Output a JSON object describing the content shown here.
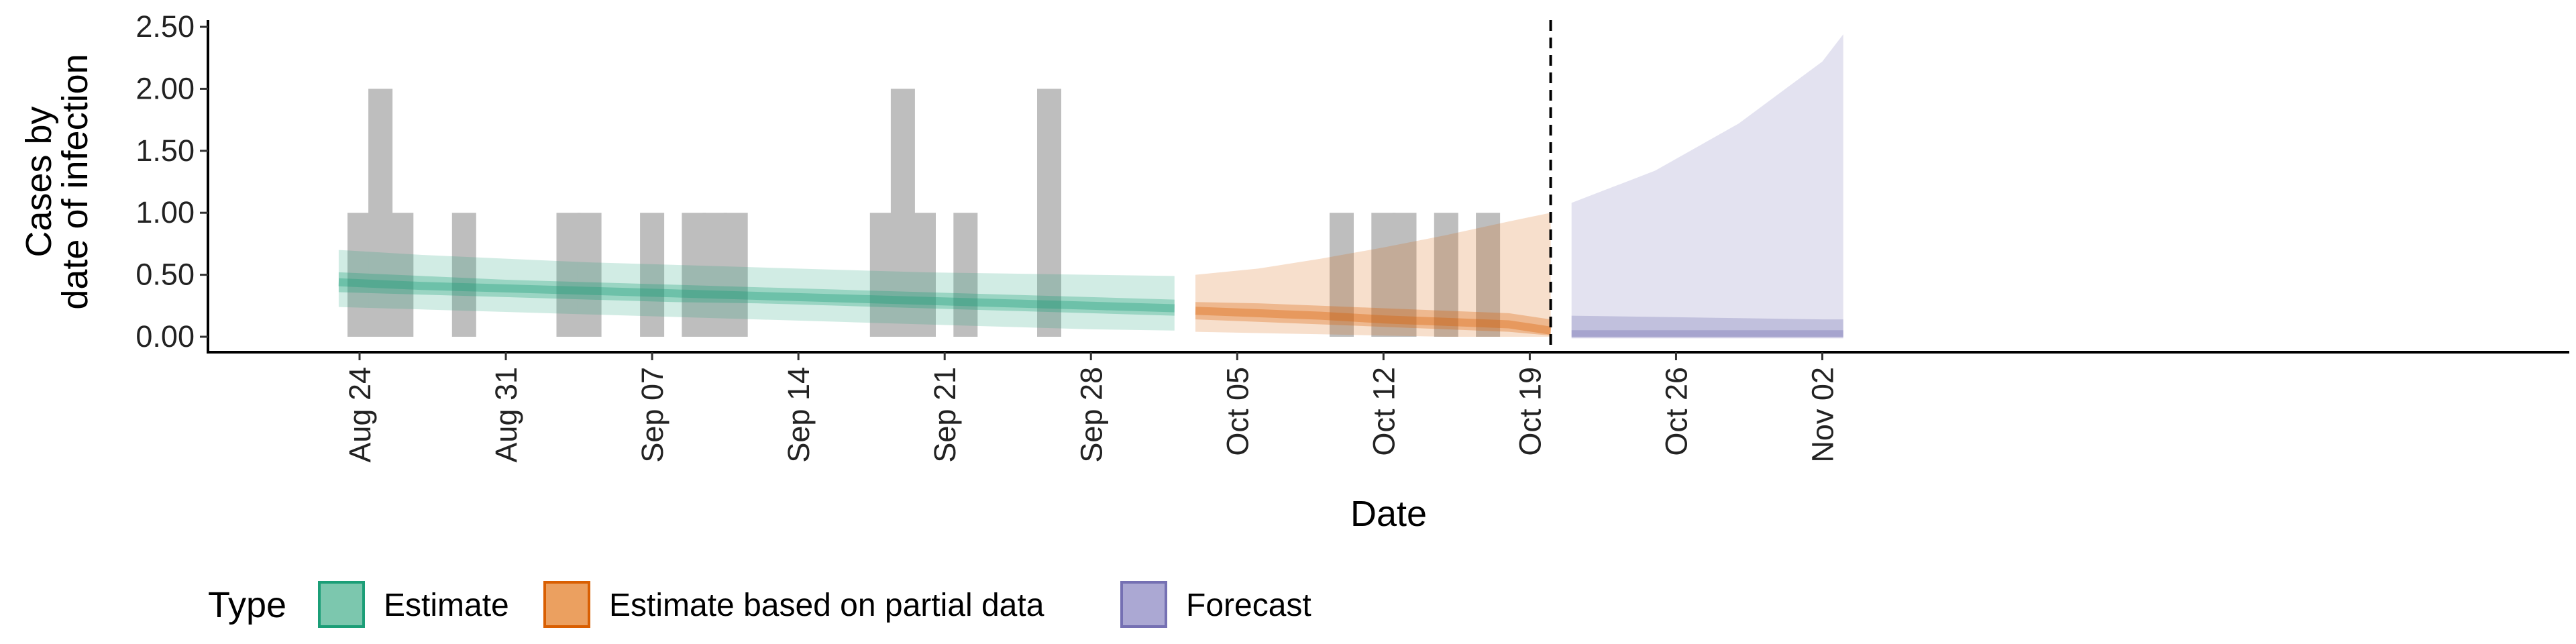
{
  "chart_data": {
    "type": "area",
    "xlabel": "Date",
    "ylabel_lines": [
      "Cases by",
      "date of infection"
    ],
    "ylim": [
      0,
      2.5
    ],
    "yticks": [
      {
        "value": 0,
        "label": "0.00"
      },
      {
        "value": 0.5,
        "label": "0.50"
      },
      {
        "value": 1,
        "label": "1.00"
      },
      {
        "value": 1.5,
        "label": "1.50"
      },
      {
        "value": 2,
        "label": "2.00"
      },
      {
        "value": 2.5,
        "label": "2.50"
      }
    ],
    "xlim": [
      "2020-08-16",
      "2020-11-06"
    ],
    "xticks": [
      {
        "date": "2020-08-24",
        "label": "Aug 24"
      },
      {
        "date": "2020-08-31",
        "label": "Aug 31"
      },
      {
        "date": "2020-09-07",
        "label": "Sep 07"
      },
      {
        "date": "2020-09-14",
        "label": "Sep 14"
      },
      {
        "date": "2020-09-21",
        "label": "Sep 21"
      },
      {
        "date": "2020-09-28",
        "label": "Sep 28"
      },
      {
        "date": "2020-10-05",
        "label": "Oct 05"
      },
      {
        "date": "2020-10-12",
        "label": "Oct 12"
      },
      {
        "date": "2020-10-19",
        "label": "Oct 19"
      },
      {
        "date": "2020-10-26",
        "label": "Oct 26"
      },
      {
        "date": "2020-11-02",
        "label": "Nov 02"
      }
    ],
    "forecast_start": "2020-10-20",
    "observed_cases": [
      {
        "date": "2020-08-24",
        "value": 1
      },
      {
        "date": "2020-08-25",
        "value": 2
      },
      {
        "date": "2020-08-26",
        "value": 1
      },
      {
        "date": "2020-08-29",
        "value": 1
      },
      {
        "date": "2020-09-03",
        "value": 1
      },
      {
        "date": "2020-09-04",
        "value": 1
      },
      {
        "date": "2020-09-07",
        "value": 1
      },
      {
        "date": "2020-09-09",
        "value": 1
      },
      {
        "date": "2020-09-10",
        "value": 1
      },
      {
        "date": "2020-09-11",
        "value": 1
      },
      {
        "date": "2020-09-18",
        "value": 1
      },
      {
        "date": "2020-09-19",
        "value": 2
      },
      {
        "date": "2020-09-20",
        "value": 1
      },
      {
        "date": "2020-09-22",
        "value": 1
      },
      {
        "date": "2020-09-26",
        "value": 2
      },
      {
        "date": "2020-10-10",
        "value": 1
      },
      {
        "date": "2020-10-12",
        "value": 1
      },
      {
        "date": "2020-10-13",
        "value": 1
      },
      {
        "date": "2020-10-15",
        "value": 1
      },
      {
        "date": "2020-10-17",
        "value": 1
      }
    ],
    "series": [
      {
        "name": "Estimate",
        "color": "#1B9E77",
        "dates": [
          "2020-08-23",
          "2020-08-27",
          "2020-08-31",
          "2020-09-04",
          "2020-09-08",
          "2020-09-12",
          "2020-09-16",
          "2020-09-20",
          "2020-09-24",
          "2020-09-28",
          "2020-10-02"
        ],
        "median": [
          0.44,
          0.41,
          0.39,
          0.37,
          0.35,
          0.33,
          0.31,
          0.29,
          0.27,
          0.25,
          0.23
        ],
        "inner": [
          [
            0.36,
            0.52
          ],
          [
            0.34,
            0.49
          ],
          [
            0.32,
            0.46
          ],
          [
            0.3,
            0.44
          ],
          [
            0.28,
            0.42
          ],
          [
            0.27,
            0.4
          ],
          [
            0.25,
            0.38
          ],
          [
            0.23,
            0.36
          ],
          [
            0.21,
            0.34
          ],
          [
            0.19,
            0.32
          ],
          [
            0.17,
            0.3
          ]
        ],
        "outer": [
          [
            0.24,
            0.7
          ],
          [
            0.22,
            0.66
          ],
          [
            0.2,
            0.63
          ],
          [
            0.18,
            0.6
          ],
          [
            0.16,
            0.58
          ],
          [
            0.14,
            0.56
          ],
          [
            0.12,
            0.54
          ],
          [
            0.1,
            0.52
          ],
          [
            0.08,
            0.51
          ],
          [
            0.06,
            0.5
          ],
          [
            0.05,
            0.49
          ]
        ]
      },
      {
        "name": "Estimate based on partial data",
        "color": "#D95F02",
        "dates": [
          "2020-10-03",
          "2020-10-06",
          "2020-10-09",
          "2020-10-12",
          "2020-10-15",
          "2020-10-18",
          "2020-10-20"
        ],
        "median": [
          0.21,
          0.19,
          0.17,
          0.14,
          0.12,
          0.1,
          0.05
        ],
        "inner": [
          [
            0.14,
            0.28
          ],
          [
            0.12,
            0.27
          ],
          [
            0.1,
            0.25
          ],
          [
            0.08,
            0.23
          ],
          [
            0.06,
            0.21
          ],
          [
            0.04,
            0.19
          ],
          [
            0.01,
            0.14
          ]
        ],
        "outer": [
          [
            0.04,
            0.5
          ],
          [
            0.03,
            0.55
          ],
          [
            0.02,
            0.63
          ],
          [
            0.01,
            0.72
          ],
          [
            0.0,
            0.82
          ],
          [
            0.0,
            0.93
          ],
          [
            0.0,
            1.0
          ]
        ]
      },
      {
        "name": "Forecast",
        "color": "#7570B3",
        "dates": [
          "2020-10-21",
          "2020-10-25",
          "2020-10-29",
          "2020-11-02",
          "2020-11-03"
        ],
        "median": [
          0.02,
          0.02,
          0.02,
          0.02,
          0.02
        ],
        "inner": [
          [
            0.0,
            0.17
          ],
          [
            0.0,
            0.16
          ],
          [
            0.0,
            0.15
          ],
          [
            0.0,
            0.14
          ],
          [
            0.0,
            0.14
          ]
        ],
        "outer": [
          [
            0.0,
            1.08
          ],
          [
            0.0,
            1.34
          ],
          [
            0.0,
            1.72
          ],
          [
            0.0,
            2.22
          ],
          [
            0.0,
            2.44
          ]
        ]
      }
    ],
    "legend": {
      "title": "Type",
      "position": "bottom",
      "items": [
        {
          "label": "Estimate",
          "fill": "#7CC7AE",
          "border": "#1B9E77"
        },
        {
          "label": "Estimate based on partial data",
          "fill": "#EBA060",
          "border": "#D95F02"
        },
        {
          "label": "Forecast",
          "fill": "#ABA8D3",
          "border": "#7570B3"
        }
      ]
    },
    "colors": {
      "bar": "#BEBEBE",
      "axis": "#000000",
      "forecast_line": "#000000"
    }
  }
}
